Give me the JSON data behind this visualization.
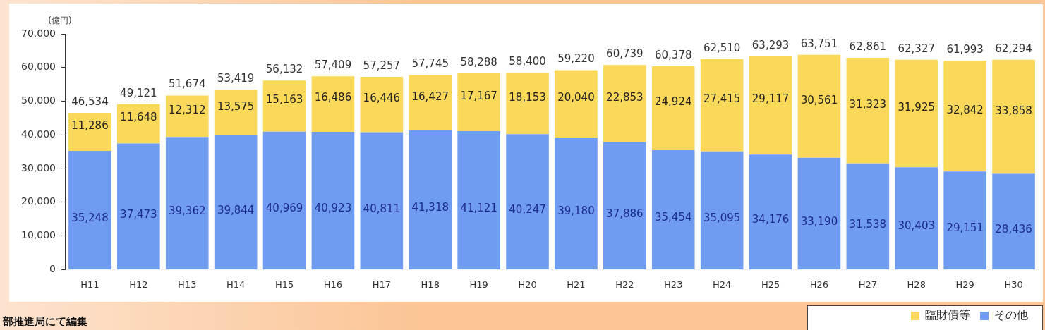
{
  "chart_data": {
    "type": "bar",
    "stacked": true,
    "ylabel": "(億円)",
    "categories": [
      "H11",
      "H12",
      "H13",
      "H14",
      "H15",
      "H16",
      "H17",
      "H18",
      "H19",
      "H20",
      "H21",
      "H22",
      "H23",
      "H24",
      "H25",
      "H26",
      "H27",
      "H28",
      "H29",
      "H30"
    ],
    "series": [
      {
        "name": "その他",
        "color": "#6f9cf0",
        "values": [
          35248,
          37473,
          39362,
          39844,
          40969,
          40923,
          40811,
          41318,
          41121,
          40247,
          39180,
          37886,
          35454,
          35095,
          34176,
          33190,
          31538,
          30403,
          29151,
          28436
        ],
        "value_labels": [
          "35,248",
          "37,473",
          "39,362",
          "39,844",
          "40,969",
          "40,923",
          "40,811",
          "41,318",
          "41,121",
          "40,247",
          "39,180",
          "37,886",
          "35,454",
          "35,095",
          "34,176",
          "33,190",
          "31,538",
          "30,403",
          "29,151",
          "28,436"
        ]
      },
      {
        "name": "臨財債等",
        "color": "#f9d85a",
        "values": [
          11286,
          11648,
          12312,
          13575,
          15163,
          16486,
          16446,
          16427,
          17167,
          18153,
          20040,
          22853,
          24924,
          27415,
          29117,
          30561,
          31323,
          31925,
          32842,
          33858
        ],
        "value_labels": [
          "11,286",
          "11,648",
          "12,312",
          "13,575",
          "15,163",
          "16,486",
          "16,446",
          "16,427",
          "17,167",
          "18,153",
          "20,040",
          "22,853",
          "24,924",
          "27,415",
          "29,117",
          "30,561",
          "31,323",
          "31,925",
          "32,842",
          "33,858"
        ]
      }
    ],
    "totals": [
      "46,534",
      "49,121",
      "51,674",
      "53,419",
      "56,132",
      "57,409",
      "57,257",
      "57,745",
      "58,288",
      "58,400",
      "59,220",
      "60,739",
      "60,378",
      "62,510",
      "63,293",
      "63,751",
      "62,861",
      "62,327",
      "61,993",
      "62,294"
    ],
    "ylim": [
      0,
      70000
    ],
    "yticks": [
      {
        "value": 0,
        "label": "0"
      },
      {
        "value": 10000,
        "label": "10,000"
      },
      {
        "value": 20000,
        "label": "20,000"
      },
      {
        "value": 30000,
        "label": "30,000"
      },
      {
        "value": 40000,
        "label": "40,000"
      },
      {
        "value": 50000,
        "label": "50,000"
      },
      {
        "value": 60000,
        "label": "60,000"
      },
      {
        "value": 70000,
        "label": "70,000"
      }
    ],
    "grid": false,
    "legend": "bottom right",
    "annotations": [
      "部推進局にて編集"
    ]
  }
}
